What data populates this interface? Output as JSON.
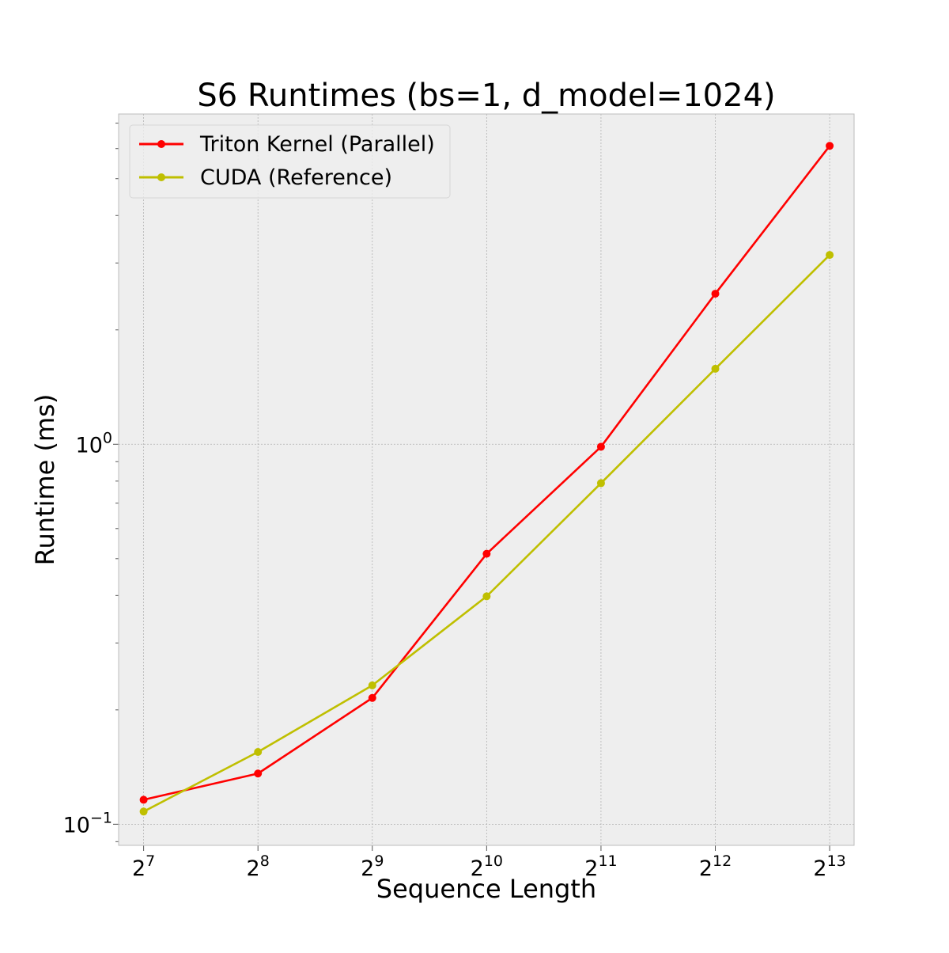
{
  "chart_data": {
    "type": "line",
    "title": "S6 Runtimes (bs=1, d_model=1024)",
    "xlabel": "Sequence Length",
    "ylabel": "Runtime (ms)",
    "x_scale": "log2",
    "y_scale": "log10",
    "x": [
      128,
      256,
      512,
      1024,
      2048,
      4096,
      8192
    ],
    "x_tick_labels": [
      {
        "base": "2",
        "exp": "7"
      },
      {
        "base": "2",
        "exp": "8"
      },
      {
        "base": "2",
        "exp": "9"
      },
      {
        "base": "2",
        "exp": "10"
      },
      {
        "base": "2",
        "exp": "11"
      },
      {
        "base": "2",
        "exp": "12"
      },
      {
        "base": "2",
        "exp": "13"
      }
    ],
    "y_major_ticks": [
      {
        "value": 0.1,
        "base": "10",
        "exp": "−1"
      },
      {
        "value": 1,
        "base": "10",
        "exp": "0"
      }
    ],
    "xlim": [
      110,
      9500
    ],
    "ylim": [
      0.088,
      7.4
    ],
    "grid": true,
    "legend_position": "upper-left",
    "series": [
      {
        "name": "Triton Kernel (Parallel)",
        "color": "#ff0000",
        "values": [
          0.116,
          0.136,
          0.215,
          0.515,
          0.985,
          2.49,
          6.1
        ]
      },
      {
        "name": "CUDA (Reference)",
        "color": "#bfbf00",
        "values": [
          0.108,
          0.155,
          0.232,
          0.398,
          0.79,
          1.58,
          3.15
        ]
      }
    ]
  }
}
